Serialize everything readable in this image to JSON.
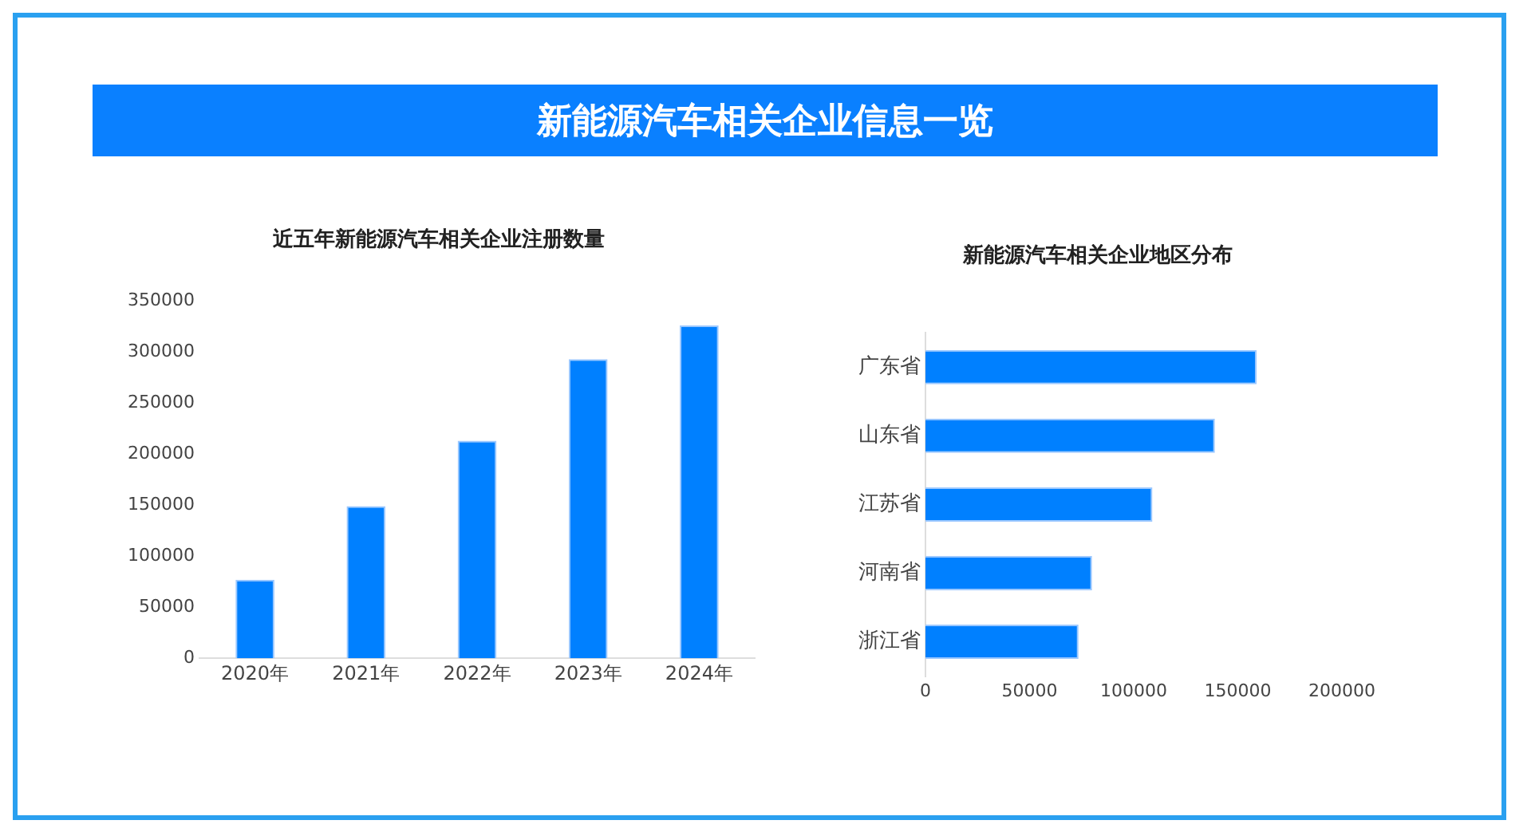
{
  "chart_data": [
    {
      "type": "other",
      "title": "新能源汽车相关企业信息一览"
    },
    {
      "type": "bar",
      "title": "近五年新能源汽车相关企业注册数量",
      "categories": [
        "2020年",
        "2021年",
        "2022年",
        "2023年",
        "2024年"
      ],
      "values": [
        77000,
        149000,
        213000,
        293000,
        326000
      ],
      "color": "#0080ff",
      "ylim": [
        0,
        350000
      ],
      "yticks": [
        0,
        50000,
        100000,
        150000,
        200000,
        250000,
        300000,
        350000
      ]
    },
    {
      "type": "bar",
      "orientation": "horizontal",
      "title": "新能源汽车相关企业地区分布",
      "categories": [
        "广东省",
        "山东省",
        "江苏省",
        "河南省",
        "浙江省"
      ],
      "values": [
        159000,
        139000,
        109000,
        80000,
        73500
      ],
      "color": "#0080ff",
      "xlim": [
        0,
        200000
      ],
      "xticks": [
        0,
        50000,
        100000,
        150000,
        200000
      ]
    }
  ]
}
